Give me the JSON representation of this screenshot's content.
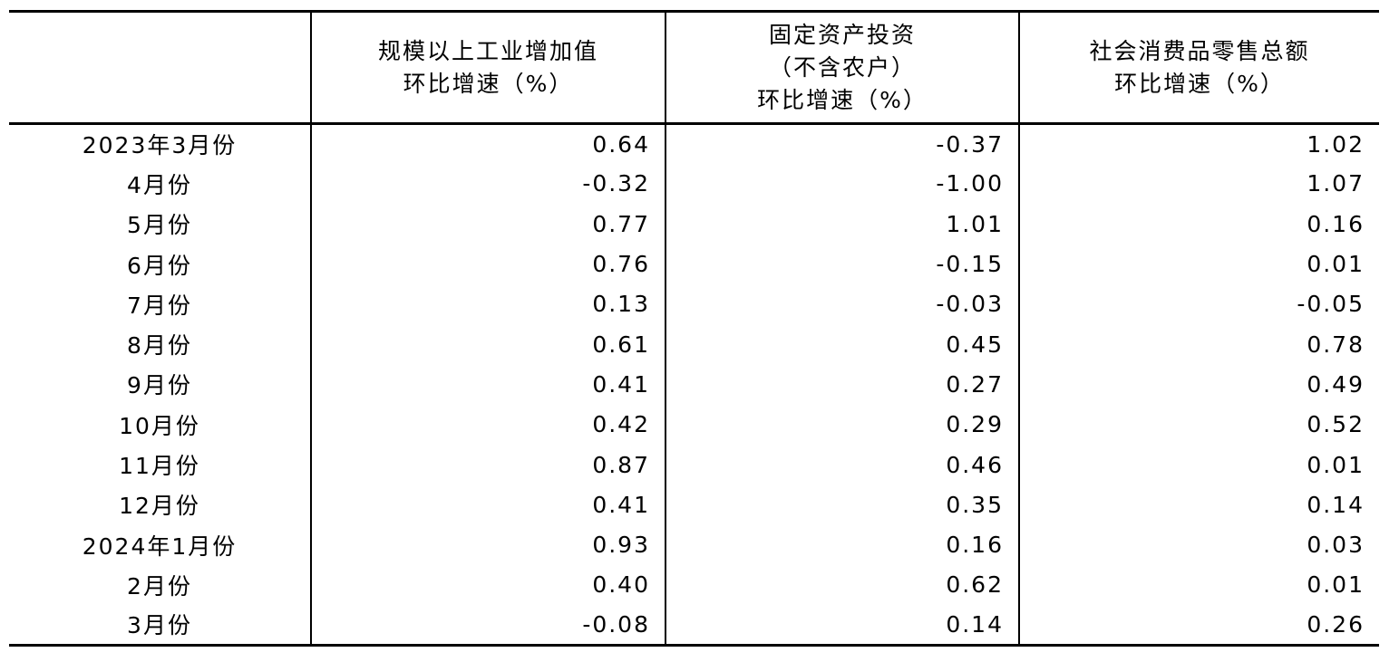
{
  "table": {
    "columns": [
      {
        "lines": [
          "规模以上工业增加值",
          "环比增速（%）"
        ]
      },
      {
        "lines": [
          "固定资产投资",
          "（不含农户）",
          "环比增速（%）"
        ]
      },
      {
        "lines": [
          "社会消费品零售总额",
          "环比增速（%）"
        ]
      }
    ],
    "rows": [
      {
        "period": "2023年3月份",
        "values": [
          "0.64",
          "-0.37",
          "1.02"
        ]
      },
      {
        "period": "4月份",
        "values": [
          "-0.32",
          "-1.00",
          "1.07"
        ]
      },
      {
        "period": "5月份",
        "values": [
          "0.77",
          "1.01",
          "0.16"
        ]
      },
      {
        "period": "6月份",
        "values": [
          "0.76",
          "-0.15",
          "0.01"
        ]
      },
      {
        "period": "7月份",
        "values": [
          "0.13",
          "-0.03",
          "-0.05"
        ]
      },
      {
        "period": "8月份",
        "values": [
          "0.61",
          "0.45",
          "0.78"
        ]
      },
      {
        "period": "9月份",
        "values": [
          "0.41",
          "0.27",
          "0.49"
        ]
      },
      {
        "period": "10月份",
        "values": [
          "0.42",
          "0.29",
          "0.52"
        ]
      },
      {
        "period": "11月份",
        "values": [
          "0.87",
          "0.46",
          "0.01"
        ]
      },
      {
        "period": "12月份",
        "values": [
          "0.41",
          "0.35",
          "0.14"
        ]
      },
      {
        "period": "2024年1月份",
        "values": [
          "0.93",
          "0.16",
          "0.03"
        ]
      },
      {
        "period": "2月份",
        "values": [
          "0.40",
          "0.62",
          "0.01"
        ]
      },
      {
        "period": "3月份",
        "values": [
          "-0.08",
          "0.14",
          "0.26"
        ]
      }
    ]
  }
}
